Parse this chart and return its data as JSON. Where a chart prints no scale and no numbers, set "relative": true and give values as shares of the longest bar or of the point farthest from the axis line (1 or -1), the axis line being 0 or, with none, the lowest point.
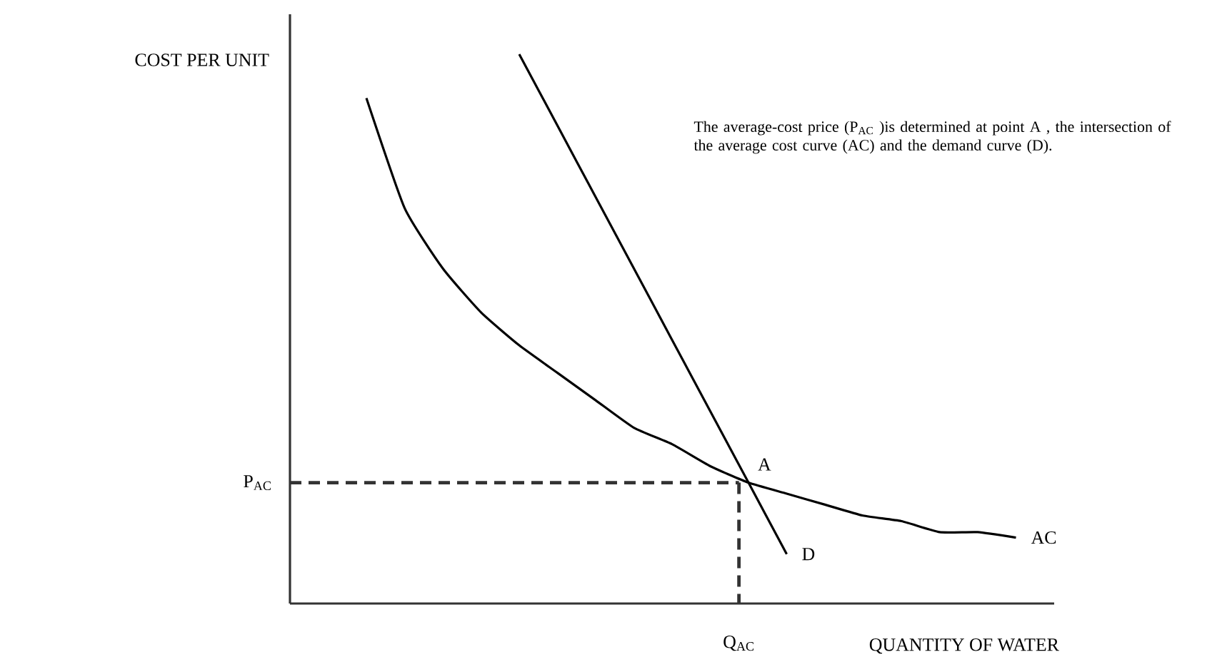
{
  "chart_data": {
    "type": "line",
    "relative": true,
    "ylabel": "COST PER UNIT",
    "xlabel": "QUANTITY OF WATER",
    "categories": [
      null,
      null,
      null,
      null,
      null,
      null,
      null,
      null,
      null,
      null,
      null,
      null,
      null,
      null,
      null,
      null,
      null,
      null,
      null,
      null,
      null
    ],
    "series": [
      {
        "name": "AC",
        "color": "#000000",
        "values": [
          null,
          null,
          0.92,
          0.72,
          0.61,
          0.53,
          0.47,
          0.42,
          0.37,
          0.32,
          0.29,
          0.25,
          0.22,
          0.2,
          0.18,
          0.16,
          0.15,
          0.13,
          0.13,
          0.12,
          null
        ]
      },
      {
        "name": "D",
        "color": "#000000",
        "values": [
          null,
          null,
          null,
          null,
          null,
          null,
          1,
          0.87,
          0.74,
          0.61,
          0.48,
          0.35,
          0.22,
          0.09,
          null,
          null,
          null,
          null,
          null,
          null,
          null
        ]
      }
    ],
    "ref_lines": [
      {
        "axis": "y",
        "value": 0.22,
        "label": "P$_{AC}$",
        "line_style": "dashed",
        "color": "#333333"
      }
    ],
    "annotations": [
      "The average-cost price (P$_{AC}$ )is determined at point A , the intersection  of the average cost curve (AC) and the demand curve (D).",
      {
        "text": "A",
        "y": 0.22
      },
      "Q$_{AC}$"
    ],
    "marker": "none",
    "line_style": "solid"
  }
}
